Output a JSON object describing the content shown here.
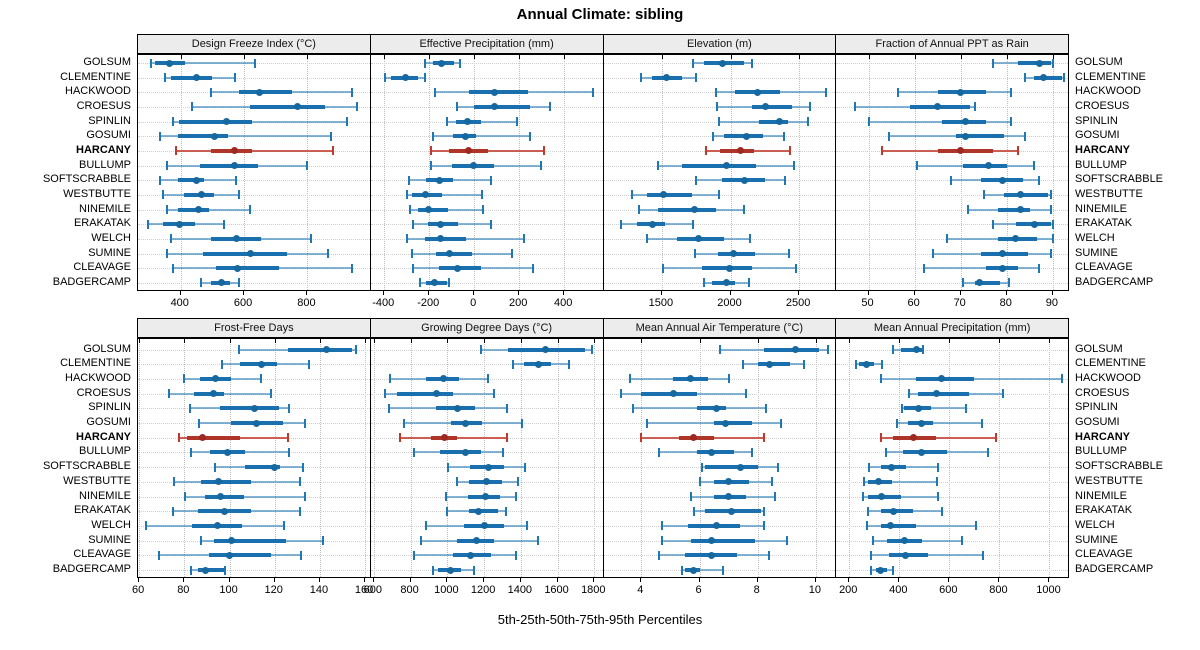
{
  "title": "Annual Climate: sibling",
  "axis_label": "5th-25th-50th-75th-95th Percentiles",
  "highlight_site": "HARCANY",
  "sites": [
    "GOLSUM",
    "CLEMENTINE",
    "HACKWOOD",
    "CROESUS",
    "SPINLIN",
    "GOSUMI",
    "HARCANY",
    "BULLUMP",
    "SOFTSCRABBLE",
    "WESTBUTTE",
    "NINEMILE",
    "ERAKATAK",
    "WELCH",
    "SUMINE",
    "CLEAVAGE",
    "BADGERCAMP"
  ],
  "colors": {
    "blue_dot": "#16689f",
    "blue_bar": "#1a6fae",
    "blue_whisker": "rgba(31,119,180,0.55)",
    "blue_cap": "#1f77b4",
    "red_dot": "#9c2a22",
    "red_bar": "#b03529",
    "red_whisker": "rgba(192,57,43,0.8)",
    "red_cap": "#c0392b",
    "strip_bg": "#ececec",
    "panel_border": "#000000",
    "grid": "#c8c8c8"
  },
  "chart_data": {
    "type": "trellis-percentile-dotplot",
    "percentiles": [
      5,
      25,
      50,
      75,
      95
    ],
    "note": "values[i] = [p5,p25,p50,p75,p95] for sites[i]",
    "panels": [
      {
        "title": "Design Freeze Index (°C)",
        "row": 0,
        "col": 0,
        "xlim": [
          265,
          1000
        ],
        "ticks": [
          400,
          600,
          800
        ],
        "values": [
          [
            305,
            320,
            365,
            415,
            635
          ],
          [
            350,
            370,
            450,
            500,
            570
          ],
          [
            495,
            585,
            650,
            750,
            940
          ],
          [
            435,
            620,
            770,
            855,
            955
          ],
          [
            375,
            395,
            545,
            625,
            925
          ],
          [
            335,
            390,
            505,
            550,
            875
          ],
          [
            385,
            495,
            570,
            625,
            880
          ],
          [
            355,
            460,
            570,
            645,
            800
          ],
          [
            333,
            390,
            450,
            475,
            575
          ],
          [
            345,
            410,
            465,
            505,
            585
          ],
          [
            355,
            390,
            455,
            490,
            620
          ],
          [
            295,
            345,
            395,
            445,
            535
          ],
          [
            370,
            495,
            575,
            655,
            810
          ],
          [
            355,
            470,
            620,
            735,
            865
          ],
          [
            375,
            510,
            580,
            710,
            940
          ],
          [
            465,
            495,
            530,
            555,
            585
          ]
        ]
      },
      {
        "title": "Effective Precipitation (mm)",
        "row": 0,
        "col": 1,
        "xlim": [
          -460,
          575
        ],
        "ticks": [
          -400,
          -200,
          0,
          200,
          400
        ],
        "values": [
          [
            -220,
            -185,
            -145,
            -90,
            -65
          ],
          [
            -395,
            -370,
            -305,
            -250,
            -220
          ],
          [
            -175,
            -25,
            90,
            240,
            530
          ],
          [
            -75,
            0,
            90,
            250,
            335
          ],
          [
            -120,
            -80,
            -30,
            30,
            190
          ],
          [
            -185,
            -95,
            -40,
            10,
            250
          ],
          [
            -190,
            -110,
            -25,
            60,
            310
          ],
          [
            -190,
            -100,
            -5,
            90,
            295
          ],
          [
            -290,
            -215,
            -155,
            -95,
            75
          ],
          [
            -300,
            -275,
            -215,
            -145,
            35
          ],
          [
            -285,
            -250,
            -205,
            -115,
            40
          ],
          [
            -270,
            -205,
            -150,
            -70,
            75
          ],
          [
            -300,
            -220,
            -150,
            -35,
            220
          ],
          [
            -275,
            -170,
            -110,
            -10,
            170
          ],
          [
            -270,
            -155,
            -75,
            30,
            260
          ],
          [
            -240,
            -215,
            -175,
            -120,
            -110
          ]
        ]
      },
      {
        "title": "Elevation (m)",
        "row": 0,
        "col": 2,
        "xlim": [
          1075,
          2770
        ],
        "ticks": [
          1500,
          2000,
          2500
        ],
        "values": [
          [
            1730,
            1805,
            1940,
            2095,
            2160
          ],
          [
            1350,
            1430,
            1535,
            1645,
            1745
          ],
          [
            1895,
            2035,
            2195,
            2360,
            2695
          ],
          [
            1905,
            2155,
            2255,
            2445,
            2580
          ],
          [
            1915,
            2205,
            2355,
            2420,
            2565
          ],
          [
            1875,
            1950,
            2115,
            2240,
            2390
          ],
          [
            1820,
            1925,
            2070,
            2170,
            2430
          ],
          [
            1470,
            1645,
            1970,
            2185,
            2460
          ],
          [
            1745,
            1935,
            2100,
            2250,
            2395
          ],
          [
            1285,
            1390,
            1515,
            1720,
            1915
          ],
          [
            1335,
            1475,
            1735,
            1895,
            2095
          ],
          [
            1205,
            1320,
            1435,
            1525,
            1725
          ],
          [
            1390,
            1610,
            1770,
            1950,
            2140
          ],
          [
            1740,
            1910,
            2025,
            2180,
            2425
          ],
          [
            1505,
            1790,
            1995,
            2155,
            2480
          ],
          [
            1810,
            1865,
            1970,
            2035,
            2135
          ]
        ]
      },
      {
        "title": "Fraction of Annual PPT as Rain",
        "row": 0,
        "col": 3,
        "xlim": [
          43,
          93.5
        ],
        "ticks": [
          50,
          60,
          70,
          80,
          90
        ],
        "values": [
          [
            77,
            82.5,
            87,
            89.5,
            90
          ],
          [
            84,
            86,
            88,
            92,
            92.5
          ],
          [
            56.5,
            65,
            70,
            75.5,
            81
          ],
          [
            47,
            59,
            65,
            72,
            73
          ],
          [
            50,
            66,
            71,
            75.5,
            81
          ],
          [
            54.5,
            69,
            71,
            79.5,
            84
          ],
          [
            53,
            65,
            70,
            77,
            82.5
          ],
          [
            60.5,
            70.5,
            76,
            80,
            86
          ],
          [
            68,
            74.5,
            79,
            83.5,
            87
          ],
          [
            75,
            79.5,
            83,
            89,
            89.5
          ],
          [
            71.5,
            78,
            83,
            85,
            89.5
          ],
          [
            77,
            82,
            86,
            89.5,
            90
          ],
          [
            67,
            78,
            82,
            86.5,
            90
          ],
          [
            64,
            74.5,
            79,
            84.5,
            89.5
          ],
          [
            62,
            75.5,
            79,
            82.5,
            87
          ],
          [
            70.5,
            73,
            74,
            78.5,
            80.5
          ]
        ]
      },
      {
        "title": "Frost-Free Days",
        "row": 1,
        "col": 0,
        "xlim": [
          59.5,
          162.5
        ],
        "ticks": [
          60,
          80,
          100,
          120,
          140,
          160
        ],
        "values": [
          [
            104,
            126,
            143,
            154,
            156
          ],
          [
            96.5,
            104.5,
            114,
            121,
            135
          ],
          [
            80,
            87,
            94,
            100.5,
            114
          ],
          [
            73,
            84.5,
            93,
            97.5,
            118.5
          ],
          [
            82.5,
            96,
            111,
            122,
            126.5
          ],
          [
            86.5,
            100.5,
            112,
            123.5,
            133.5
          ],
          [
            77.5,
            81,
            88,
            104.5,
            126
          ],
          [
            83,
            91.5,
            99,
            107,
            126.5
          ],
          [
            93.5,
            107,
            120,
            122.5,
            132.5
          ],
          [
            75.5,
            87.5,
            95,
            109.5,
            131
          ],
          [
            80.5,
            89,
            96,
            106.5,
            133.5
          ],
          [
            75,
            86,
            98,
            109.5,
            131
          ],
          [
            63,
            83.5,
            94.5,
            105.5,
            124
          ],
          [
            87.5,
            93,
            101,
            125,
            141.5
          ],
          [
            69,
            91,
            100,
            118.5,
            131.5
          ],
          [
            83,
            86,
            89.5,
            97.5,
            98
          ]
        ]
      },
      {
        "title": "Growing Degree Days (°C)",
        "row": 1,
        "col": 1,
        "xlim": [
          583,
          1850
        ],
        "ticks": [
          600,
          800,
          1000,
          1200,
          1400,
          1600,
          1800
        ],
        "values": [
          [
            1185,
            1330,
            1535,
            1750,
            1785
          ],
          [
            1360,
            1415,
            1495,
            1565,
            1660
          ],
          [
            690,
            885,
            980,
            1065,
            1220
          ],
          [
            660,
            725,
            940,
            1030,
            1255
          ],
          [
            685,
            940,
            1055,
            1150,
            1325
          ],
          [
            765,
            1020,
            1100,
            1190,
            1405
          ],
          [
            740,
            910,
            985,
            1050,
            1325
          ],
          [
            820,
            960,
            1100,
            1185,
            1305
          ],
          [
            1005,
            1125,
            1225,
            1310,
            1425
          ],
          [
            1055,
            1120,
            1215,
            1295,
            1385
          ],
          [
            995,
            1110,
            1205,
            1285,
            1375
          ],
          [
            1000,
            1120,
            1170,
            1275,
            1320
          ],
          [
            885,
            1090,
            1200,
            1310,
            1435
          ],
          [
            855,
            1055,
            1160,
            1255,
            1495
          ],
          [
            820,
            1030,
            1125,
            1240,
            1375
          ],
          [
            920,
            950,
            1015,
            1075,
            1145
          ]
        ]
      },
      {
        "title": "Mean Annual Air Temperature (°C)",
        "row": 1,
        "col": 2,
        "xlim": [
          2.7,
          10.7
        ],
        "ticks": [
          4,
          6,
          8,
          10
        ],
        "values": [
          [
            6.7,
            8.2,
            9.3,
            10.1,
            10.4
          ],
          [
            7.5,
            8.0,
            8.4,
            9.1,
            9.6
          ],
          [
            3.6,
            5.1,
            5.7,
            6.3,
            7.0
          ],
          [
            3.3,
            4.0,
            5.1,
            5.9,
            7.6
          ],
          [
            3.7,
            5.9,
            6.6,
            6.9,
            8.3
          ],
          [
            4.2,
            6.5,
            6.9,
            7.8,
            8.8
          ],
          [
            4.0,
            5.3,
            5.8,
            6.5,
            8.2
          ],
          [
            4.6,
            5.9,
            6.4,
            7.2,
            7.8
          ],
          [
            6.1,
            6.2,
            7.4,
            8.0,
            8.7
          ],
          [
            6.0,
            6.5,
            7.0,
            7.7,
            8.5
          ],
          [
            5.7,
            6.5,
            7.0,
            7.6,
            8.6
          ],
          [
            5.8,
            6.2,
            7.1,
            8.1,
            8.2
          ],
          [
            4.7,
            5.6,
            6.6,
            7.4,
            8.2
          ],
          [
            4.7,
            5.7,
            6.4,
            7.9,
            9.0
          ],
          [
            4.6,
            5.5,
            6.4,
            7.3,
            8.4
          ],
          [
            5.4,
            5.5,
            5.8,
            6.0,
            6.8
          ]
        ]
      },
      {
        "title": "Mean Annual Precipitation (mm)",
        "row": 1,
        "col": 3,
        "xlim": [
          148,
          1078
        ],
        "ticks": [
          200,
          400,
          600,
          800,
          1000
        ],
        "values": [
          [
            375,
            405,
            470,
            490,
            495
          ],
          [
            225,
            240,
            270,
            300,
            330
          ],
          [
            325,
            465,
            570,
            700,
            1050
          ],
          [
            440,
            475,
            550,
            680,
            815
          ],
          [
            410,
            420,
            475,
            525,
            665
          ],
          [
            390,
            435,
            490,
            535,
            730
          ],
          [
            325,
            375,
            455,
            545,
            785
          ],
          [
            345,
            415,
            490,
            590,
            755
          ],
          [
            280,
            325,
            370,
            425,
            555
          ],
          [
            260,
            275,
            315,
            370,
            550
          ],
          [
            255,
            275,
            330,
            405,
            555
          ],
          [
            275,
            325,
            375,
            455,
            570
          ],
          [
            270,
            325,
            365,
            465,
            705
          ],
          [
            295,
            350,
            420,
            490,
            650
          ],
          [
            285,
            360,
            425,
            515,
            735
          ],
          [
            285,
            305,
            325,
            350,
            375
          ]
        ]
      }
    ]
  }
}
